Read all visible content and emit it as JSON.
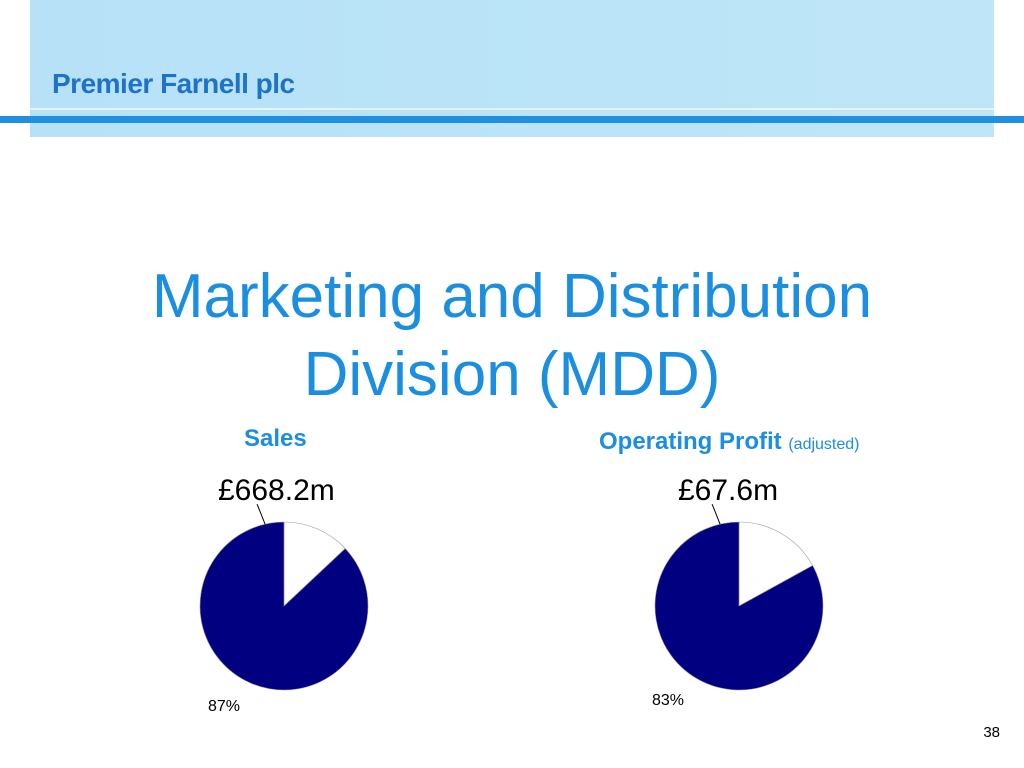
{
  "header": {
    "company": "Premier Farnell plc"
  },
  "slide": {
    "title_line1": "Marketing and Distribution",
    "title_line2": "Division (MDD)",
    "page_number": "38"
  },
  "colors": {
    "accent": "#1c8ee0",
    "navy": "#000080",
    "band": "#b6e1f7"
  },
  "chart_data": [
    {
      "type": "pie",
      "title": "Sales",
      "subtitle": "",
      "total_label": "£668.2m",
      "slices": [
        {
          "value": 87,
          "label": "87%",
          "color": "#000080"
        },
        {
          "value": 13,
          "label": "",
          "color": "#ffffff"
        }
      ]
    },
    {
      "type": "pie",
      "title": "Operating Profit",
      "subtitle": "(adjusted)",
      "total_label": "£67.6m",
      "slices": [
        {
          "value": 83,
          "label": "83%",
          "color": "#000080"
        },
        {
          "value": 17,
          "label": "",
          "color": "#ffffff"
        }
      ]
    }
  ]
}
